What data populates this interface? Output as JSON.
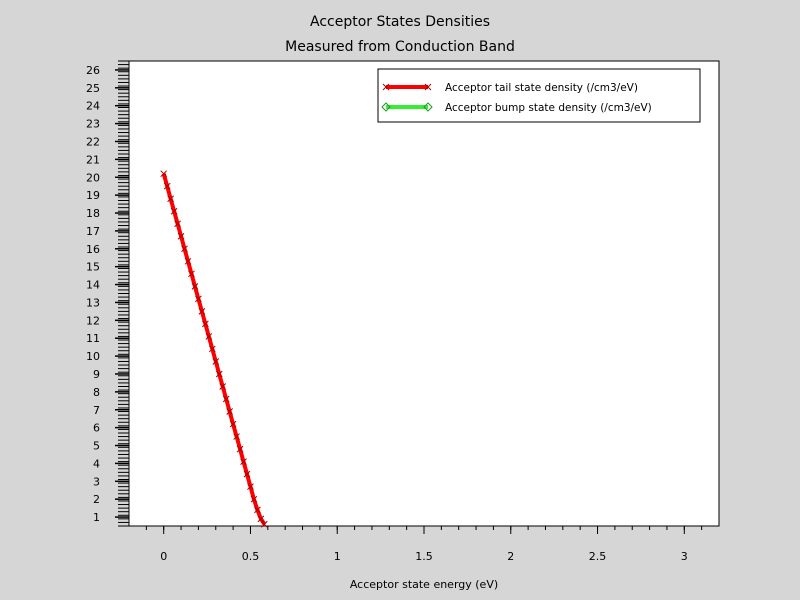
{
  "chart_data": {
    "type": "line",
    "title": "Acceptor States Densities",
    "subtitle": "Measured from Conduction Band",
    "xlabel": "Acceptor state energy (eV)",
    "ylabel": "",
    "xlim": [
      -0.2,
      3.2
    ],
    "ylim": [
      0.5,
      26.5
    ],
    "xticks": [
      0,
      0.5,
      1,
      1.5,
      2,
      2.5,
      3
    ],
    "xtick_labels": [
      "0",
      "0.5",
      "1",
      "1.5",
      "2",
      "2.5",
      "3"
    ],
    "yticks": [
      1,
      2,
      3,
      4,
      5,
      6,
      7,
      8,
      9,
      10,
      11,
      12,
      13,
      14,
      15,
      16,
      17,
      18,
      19,
      20,
      21,
      22,
      23,
      24,
      25,
      26
    ],
    "ytick_labels": [
      "1",
      "2",
      "3",
      "4",
      "5",
      "6",
      "7",
      "8",
      "9",
      "10",
      "11",
      "12",
      "13",
      "14",
      "15",
      "16",
      "17",
      "18",
      "19",
      "20",
      "21",
      "22",
      "23",
      "24",
      "25",
      "26"
    ],
    "grid": false,
    "legend_position": "top-right",
    "series": [
      {
        "name": "Acceptor tail state density (/cm3/eV)",
        "color": "#ff0000",
        "marker": "x",
        "x": [
          0.0,
          0.02,
          0.04,
          0.06,
          0.08,
          0.1,
          0.12,
          0.14,
          0.16,
          0.18,
          0.2,
          0.22,
          0.24,
          0.26,
          0.28,
          0.3,
          0.32,
          0.34,
          0.36,
          0.38,
          0.4,
          0.42,
          0.44,
          0.46,
          0.48,
          0.5,
          0.52,
          0.54,
          0.56,
          0.58
        ],
        "y": [
          20.2,
          19.5,
          18.8,
          18.1,
          17.4,
          16.7,
          16.0,
          15.3,
          14.6,
          13.9,
          13.2,
          12.5,
          11.8,
          11.1,
          10.4,
          9.7,
          9.0,
          8.3,
          7.6,
          6.9,
          6.2,
          5.5,
          4.8,
          4.1,
          3.4,
          2.7,
          2.0,
          1.4,
          0.9,
          0.6
        ]
      },
      {
        "name": "Acceptor bump state density (/cm3/eV)",
        "color": "#33ee33",
        "marker": "diamond",
        "x": [],
        "y": []
      }
    ]
  }
}
